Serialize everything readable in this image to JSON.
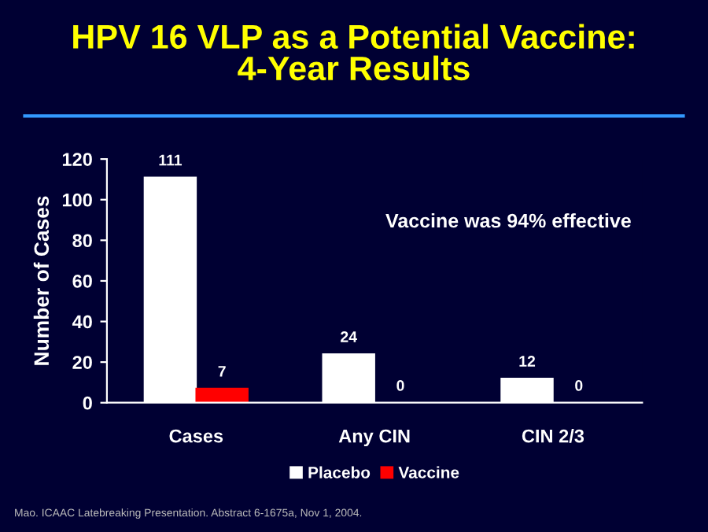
{
  "chart_data": {
    "type": "bar",
    "title": "HPV 16 VLP as a Potential Vaccine:\n4-Year Results",
    "ylabel": "Number of Cases",
    "categories": [
      "Cases",
      "Any CIN",
      "CIN 2/3"
    ],
    "series": [
      {
        "name": "Placebo",
        "color": "#ffffff",
        "values": [
          111,
          24,
          12
        ]
      },
      {
        "name": "Vaccine",
        "color": "#ff0000",
        "values": [
          7,
          0,
          0
        ]
      }
    ],
    "ylim": [
      0,
      120
    ],
    "yticks": [
      0,
      20,
      40,
      60,
      80,
      100,
      120
    ],
    "grid": false,
    "legend": "bottom",
    "data_labels": true,
    "annotations": [
      "Vaccine was 94% effective",
      "Mao. ICAAC Latebreaking Presentation. Abstract 6-1675a, Nov 1, 2004."
    ]
  }
}
